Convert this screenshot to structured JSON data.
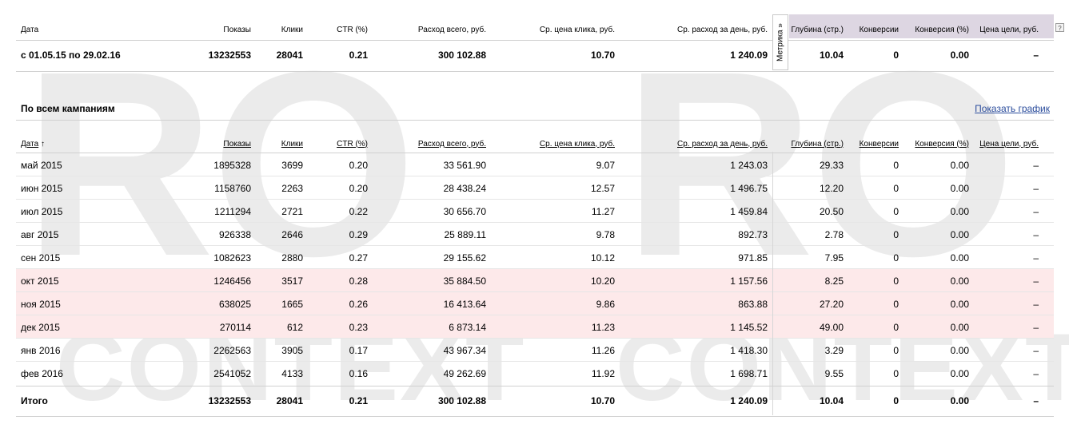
{
  "watermark": {
    "ro_1": "RO",
    "ro_2": "RO",
    "context_1": "CONTEXT",
    "context_2": "CONTEXT"
  },
  "columns": {
    "date": "Дата",
    "shows": "Показы",
    "clicks": "Клики",
    "ctr": "CTR (%)",
    "spend": "Расход всего, руб.",
    "cpc": "Ср. цена клика, руб.",
    "daily": "Ср. расход за день, руб.",
    "depth": "Глубина (стр.)",
    "conv": "Конверсии",
    "conv_pct": "Конверсия (%)",
    "goal_price": "Цена цели, руб."
  },
  "sort_arrow": "↑",
  "help_label": "?",
  "metrika_tab": "Метрика »",
  "summary": {
    "date": "с 01.05.15 по 29.02.16",
    "shows": "13232553",
    "clicks": "28041",
    "ctr": "0.21",
    "spend": "300 102.88",
    "cpc": "10.70",
    "daily": "1 240.09",
    "depth": "10.04",
    "conv": "0",
    "conv_pct": "0.00",
    "goal_price": "–"
  },
  "section": {
    "title": "По всем кампаниям",
    "show_chart": "Показать график"
  },
  "rows": [
    {
      "date": "май 2015",
      "shows": "1895328",
      "clicks": "3699",
      "ctr": "0.20",
      "spend": "33 561.90",
      "cpc": "9.07",
      "daily": "1 243.03",
      "depth": "29.33",
      "conv": "0",
      "conv_pct": "0.00",
      "goal_price": "–"
    },
    {
      "date": "июн 2015",
      "shows": "1158760",
      "clicks": "2263",
      "ctr": "0.20",
      "spend": "28 438.24",
      "cpc": "12.57",
      "daily": "1 496.75",
      "depth": "12.20",
      "conv": "0",
      "conv_pct": "0.00",
      "goal_price": "–"
    },
    {
      "date": "июл 2015",
      "shows": "1211294",
      "clicks": "2721",
      "ctr": "0.22",
      "spend": "30 656.70",
      "cpc": "11.27",
      "daily": "1 459.84",
      "depth": "20.50",
      "conv": "0",
      "conv_pct": "0.00",
      "goal_price": "–"
    },
    {
      "date": "авг 2015",
      "shows": "926338",
      "clicks": "2646",
      "ctr": "0.29",
      "spend": "25 889.11",
      "cpc": "9.78",
      "daily": "892.73",
      "depth": "2.78",
      "conv": "0",
      "conv_pct": "0.00",
      "goal_price": "–"
    },
    {
      "date": "сен 2015",
      "shows": "1082623",
      "clicks": "2880",
      "ctr": "0.27",
      "spend": "29 155.62",
      "cpc": "10.12",
      "daily": "971.85",
      "depth": "7.95",
      "conv": "0",
      "conv_pct": "0.00",
      "goal_price": "–"
    },
    {
      "date": "окт 2015",
      "shows": "1246456",
      "clicks": "3517",
      "ctr": "0.28",
      "spend": "35 884.50",
      "cpc": "10.20",
      "daily": "1 157.56",
      "depth": "8.25",
      "conv": "0",
      "conv_pct": "0.00",
      "goal_price": "–"
    },
    {
      "date": "ноя 2015",
      "shows": "638025",
      "clicks": "1665",
      "ctr": "0.26",
      "spend": "16 413.64",
      "cpc": "9.86",
      "daily": "863.88",
      "depth": "27.20",
      "conv": "0",
      "conv_pct": "0.00",
      "goal_price": "–"
    },
    {
      "date": "дек 2015",
      "shows": "270114",
      "clicks": "612",
      "ctr": "0.23",
      "spend": "6 873.14",
      "cpc": "11.23",
      "daily": "1 145.52",
      "depth": "49.00",
      "conv": "0",
      "conv_pct": "0.00",
      "goal_price": "–"
    },
    {
      "date": "янв 2016",
      "shows": "2262563",
      "clicks": "3905",
      "ctr": "0.17",
      "spend": "43 967.34",
      "cpc": "11.26",
      "daily": "1 418.30",
      "depth": "3.29",
      "conv": "0",
      "conv_pct": "0.00",
      "goal_price": "–"
    },
    {
      "date": "фев 2016",
      "shows": "2541052",
      "clicks": "4133",
      "ctr": "0.16",
      "spend": "49 262.69",
      "cpc": "11.92",
      "daily": "1 698.71",
      "depth": "9.55",
      "conv": "0",
      "conv_pct": "0.00",
      "goal_price": "–"
    }
  ],
  "total": {
    "date": "Итого",
    "shows": "13232553",
    "clicks": "28041",
    "ctr": "0.21",
    "spend": "300 102.88",
    "cpc": "10.70",
    "daily": "1 240.09",
    "depth": "10.04",
    "conv": "0",
    "conv_pct": "0.00",
    "goal_price": "–"
  },
  "colors": {
    "highlight": "#fde9ea",
    "metrika_header": "#ddd6e2",
    "link": "#2a4c9c",
    "watermark": "#ebebeb"
  }
}
